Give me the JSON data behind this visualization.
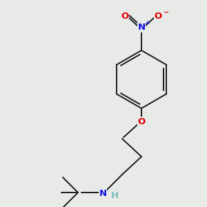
{
  "background_color": "#e8eae8",
  "bond_color": "#1a1a1a",
  "atom_colors": {
    "O": "#e00000",
    "N": "#1010e0",
    "H": "#7fbfbf"
  },
  "figsize": [
    3.0,
    3.0
  ],
  "dpi": 100,
  "lw": 1.4,
  "font_size": 9.5
}
